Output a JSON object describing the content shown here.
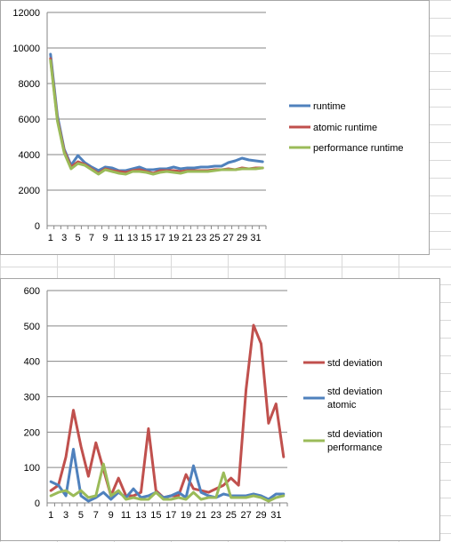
{
  "chart_data": [
    {
      "type": "line",
      "title": "",
      "xlabel": "",
      "ylabel": "",
      "ylim": [
        0,
        12000
      ],
      "yticks": [
        0,
        2000,
        4000,
        6000,
        8000,
        10000,
        12000
      ],
      "xtick_labels": [
        "1",
        "3",
        "5",
        "7",
        "9",
        "11",
        "13",
        "15",
        "17",
        "19",
        "21",
        "23",
        "25",
        "27",
        "29",
        "31"
      ],
      "x": [
        1,
        2,
        3,
        4,
        5,
        6,
        7,
        8,
        9,
        10,
        11,
        12,
        13,
        14,
        15,
        16,
        17,
        18,
        19,
        20,
        21,
        22,
        23,
        24,
        25,
        26,
        27,
        28,
        29,
        30,
        31,
        32
      ],
      "grid": "horizontal",
      "legend_position": "right",
      "series": [
        {
          "name": "runtime",
          "color": "#4f81bd",
          "values": [
            9650,
            6200,
            4300,
            3400,
            3950,
            3550,
            3300,
            3100,
            3300,
            3250,
            3100,
            3100,
            3200,
            3300,
            3150,
            3150,
            3200,
            3200,
            3300,
            3200,
            3250,
            3250,
            3300,
            3300,
            3350,
            3350,
            3550,
            3650,
            3800,
            3700,
            3650,
            3600
          ]
        },
        {
          "name": "atomic runtime",
          "color": "#c0504d",
          "values": [
            9400,
            6000,
            4200,
            3300,
            3600,
            3450,
            3200,
            2950,
            3200,
            3100,
            3050,
            3000,
            3100,
            3150,
            3050,
            2950,
            3100,
            3100,
            3100,
            3050,
            3100,
            3100,
            3100,
            3100,
            3150,
            3150,
            3200,
            3150,
            3250,
            3200,
            3250,
            3250
          ]
        },
        {
          "name": "performance runtime",
          "color": "#9bbb59",
          "values": [
            9300,
            5900,
            4100,
            3200,
            3500,
            3400,
            3150,
            2900,
            3150,
            3050,
            2950,
            2900,
            3050,
            3050,
            3000,
            2900,
            3000,
            3050,
            3000,
            2950,
            3050,
            3050,
            3050,
            3050,
            3100,
            3150,
            3150,
            3150,
            3200,
            3200,
            3200,
            3250
          ]
        }
      ]
    },
    {
      "type": "line",
      "title": "",
      "xlabel": "",
      "ylabel": "",
      "ylim": [
        0,
        600
      ],
      "yticks": [
        0,
        100,
        200,
        300,
        400,
        500,
        600
      ],
      "xtick_labels": [
        "1",
        "3",
        "5",
        "7",
        "9",
        "11",
        "13",
        "15",
        "17",
        "19",
        "21",
        "23",
        "25",
        "27",
        "29",
        "31"
      ],
      "x": [
        1,
        2,
        3,
        4,
        5,
        6,
        7,
        8,
        9,
        10,
        11,
        12,
        13,
        14,
        15,
        16,
        17,
        18,
        19,
        20,
        21,
        22,
        23,
        24,
        25,
        26,
        27,
        28,
        29,
        30,
        31,
        32
      ],
      "grid": "horizontal",
      "legend_position": "right",
      "series": [
        {
          "name": "std deviation",
          "color": "#c0504d",
          "values": [
            35,
            50,
            130,
            262,
            160,
            75,
            170,
            95,
            20,
            70,
            20,
            20,
            30,
            210,
            35,
            15,
            20,
            20,
            80,
            40,
            35,
            30,
            40,
            50,
            70,
            50,
            320,
            502,
            450,
            225,
            280,
            130
          ]
        },
        {
          "name": "std deviation atomic",
          "color": "#4f81bd",
          "values": [
            60,
            50,
            20,
            152,
            20,
            5,
            15,
            30,
            10,
            30,
            15,
            40,
            15,
            20,
            30,
            15,
            20,
            30,
            15,
            105,
            30,
            20,
            15,
            25,
            20,
            20,
            20,
            25,
            20,
            10,
            25,
            25
          ]
        },
        {
          "name": "std deviation performance",
          "color": "#9bbb59",
          "values": [
            20,
            30,
            35,
            20,
            35,
            15,
            20,
            110,
            20,
            35,
            10,
            15,
            10,
            10,
            30,
            10,
            10,
            15,
            10,
            30,
            10,
            15,
            15,
            85,
            15,
            15,
            15,
            20,
            15,
            5,
            15,
            20
          ]
        }
      ]
    }
  ]
}
